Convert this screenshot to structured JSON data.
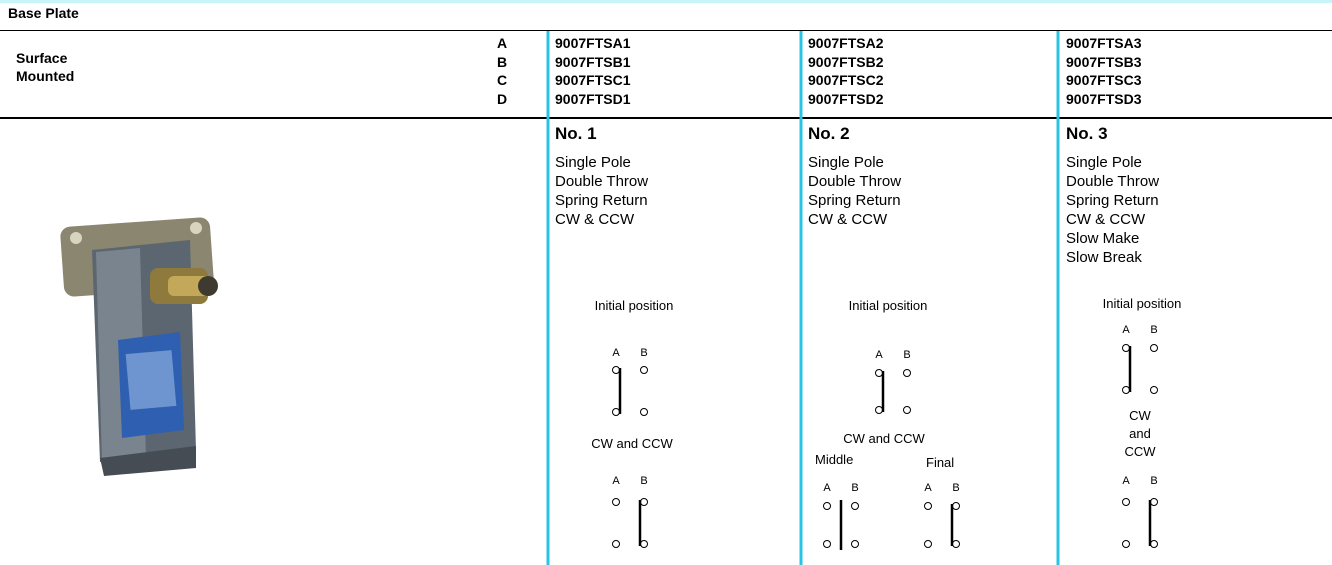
{
  "header": {
    "title": "Base Plate"
  },
  "mounting": [
    "Surface",
    "Mounted"
  ],
  "variants": [
    "A",
    "B",
    "C",
    "D"
  ],
  "contact_labels": [
    "A",
    "B"
  ],
  "columns": [
    {
      "part_numbers": [
        "9007FTSA1",
        "9007FTSB1",
        "9007FTSC1",
        "9007FTSD1"
      ],
      "number": "No. 1",
      "description": [
        "Single Pole",
        "Double Throw",
        "Spring Return",
        "CW & CCW"
      ],
      "initial_label": "Initial position",
      "action_label": [
        "CW and CCW"
      ]
    },
    {
      "part_numbers": [
        "9007FTSA2",
        "9007FTSB2",
        "9007FTSC2",
        "9007FTSD2"
      ],
      "number": "No. 2",
      "description": [
        "Single Pole",
        "Double Throw",
        "Spring Return",
        "CW & CCW"
      ],
      "initial_label": "Initial position",
      "action_label": [
        "CW and CCW"
      ],
      "middle_label": "Middle",
      "final_label": "Final"
    },
    {
      "part_numbers": [
        "9007FTSA3",
        "9007FTSB3",
        "9007FTSC3",
        "9007FTSD3"
      ],
      "number": "No. 3",
      "description": [
        "Single Pole",
        "Double Throw",
        "Spring Return",
        "CW & CCW",
        "Slow Make",
        "Slow Break"
      ],
      "initial_label": "Initial position",
      "action_label": [
        "CW",
        "and",
        "CCW"
      ]
    }
  ]
}
